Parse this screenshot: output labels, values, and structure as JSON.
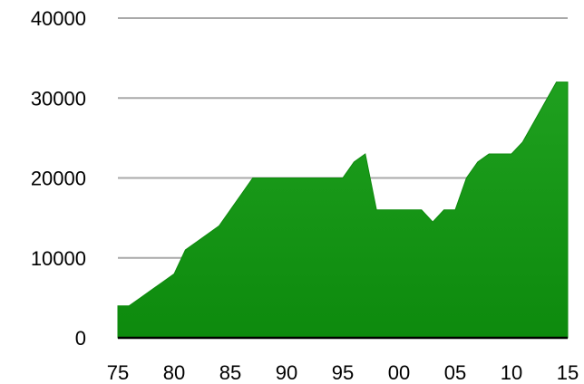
{
  "chart_data": {
    "type": "area",
    "x": [
      1975,
      1976,
      1977,
      1978,
      1979,
      1980,
      1981,
      1982,
      1983,
      1984,
      1985,
      1986,
      1987,
      1988,
      1989,
      1990,
      1991,
      1992,
      1993,
      1994,
      1995,
      1996,
      1997,
      1998,
      1999,
      2000,
      2001,
      2002,
      2003,
      2004,
      2005,
      2006,
      2007,
      2008,
      2009,
      2010,
      2011,
      2012,
      2013,
      2014,
      2015
    ],
    "values": [
      4000,
      4000,
      5000,
      6000,
      7000,
      8000,
      11000,
      12000,
      13000,
      14000,
      16000,
      18000,
      20000,
      20000,
      20000,
      20000,
      20000,
      20000,
      20000,
      20000,
      20000,
      22000,
      23000,
      16000,
      16000,
      16000,
      16000,
      16000,
      14500,
      16000,
      16000,
      20000,
      22000,
      23000,
      23000,
      23000,
      24500,
      27000,
      29500,
      32000,
      32000
    ],
    "title": "",
    "xlabel": "",
    "ylabel": "",
    "xlim": [
      1975,
      2015
    ],
    "ylim": [
      0,
      40000
    ],
    "x_tick_values": [
      1975,
      1980,
      1985,
      1990,
      1995,
      2000,
      2005,
      2010,
      2015
    ],
    "x_tick_labels": [
      "75",
      "80",
      "85",
      "90",
      "95",
      "00",
      "05",
      "10",
      "15"
    ],
    "y_tick_values": [
      0,
      10000,
      20000,
      30000,
      40000
    ],
    "y_tick_labels": [
      "0",
      "10000",
      "20000",
      "30000",
      "40000"
    ],
    "grid": true,
    "legend": "none",
    "fill_color": "#1fa01f",
    "fill_color_dark": "#0d8a0d"
  }
}
